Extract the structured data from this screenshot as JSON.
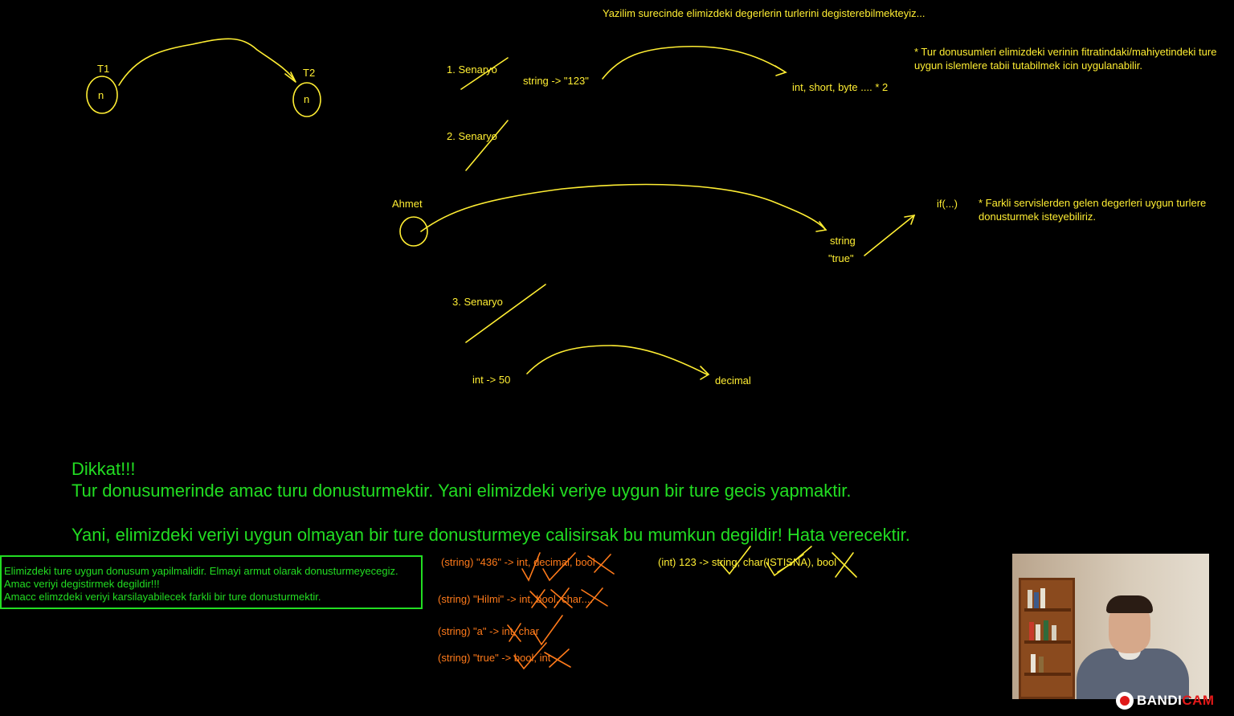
{
  "header_note": "Yazilim surecinde elimizdeki degerlerin turlerini degisterebilmekteyiz...",
  "diagram": {
    "t1": "T1",
    "t2": "T2",
    "node_label": "n"
  },
  "scenario1": {
    "label": "1. Senaryo",
    "from": "string -> \"123\"",
    "to": "int, short, byte .... * 2"
  },
  "scenario2": {
    "label": "2. Senaryo",
    "source": "Ahmet",
    "to_type": "string",
    "to_value": "\"true\"",
    "if_label": "if(...)"
  },
  "scenario3": {
    "label": "3. Senaryo",
    "from": "int -> 50",
    "to": "decimal"
  },
  "side_notes": {
    "note1": "* Tur donusumleri elimizdeki verinin fitratindaki/mahiyetindeki ture uygun islemlere tabii tutabilmek icin uygulanabilir.",
    "note2": "* Farkli servislerden gelen degerleri uygun turlere donusturmek isteyebiliriz."
  },
  "warning": {
    "title": "Dikkat!!!",
    "line1": "Tur donusumerinde amac turu donusturmektir. Yani elimizdeki veriye uygun bir ture gecis yapmaktir.",
    "line2": "Yani, elimizdeki veriyi uygun olmayan bir ture donusturmeye calisirsak bu mumkun degildir! Hata verecektir."
  },
  "box_notes": {
    "line1": "Elimizdeki ture uygun donusum yapilmalidir. Elmayi armut olarak donusturmeyecegiz.",
    "line2": "Amac veriyi degistirmek degildir!!!",
    "line3": "Amacc elimzdeki veriyi karsilayabilecek farkli bir ture donusturmektir."
  },
  "examples": {
    "ex1": "(string) \"436\" -> int, decimal, bool",
    "ex2": "(string) \"Hilmi\" -> int, bool, char....",
    "ex3": "(string) \"a\" -> int, char",
    "ex4": "(string) \"true\" -> bool, int",
    "ex5": "(int) 123 -> string, char(ISTISNA), bool"
  },
  "watermark": {
    "brand": "BANDI",
    "brand_accent": "CAM"
  },
  "colors": {
    "background": "#000000",
    "pen_yellow": "#ffee33",
    "pen_green": "#22dd22",
    "pen_orange": "#ff7a1a",
    "watermark_red": "#e01919"
  }
}
